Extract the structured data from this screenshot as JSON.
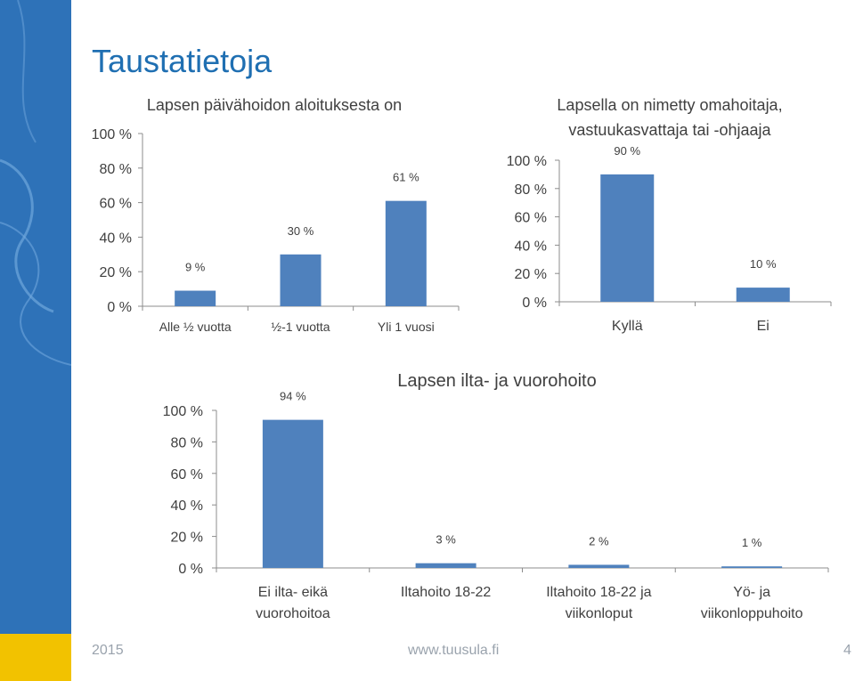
{
  "slide": {
    "title": "Taustatietoja",
    "footer_year": "2015",
    "footer_url": "www.tuusula.fi",
    "page_number": "4"
  },
  "colors": {
    "bar": "#4f81bd",
    "sidebar": "#2e72b8",
    "sidebar_accent": "#f2c200",
    "title": "#1f6fb2"
  },
  "chart_data": [
    {
      "type": "bar",
      "title": "Lapsen päivähoidon aloituksesta on",
      "categories": [
        "Alle ½ vuotta",
        "½-1 vuotta",
        "Yli 1 vuosi"
      ],
      "values": [
        9,
        30,
        61
      ],
      "data_labels": [
        "9 %",
        "30 %",
        "61 %"
      ],
      "ylim": [
        0,
        100
      ],
      "yticks": [
        "0 %",
        "20 %",
        "40 %",
        "60 %",
        "80 %",
        "100 %"
      ],
      "xlabel": "",
      "ylabel": ""
    },
    {
      "type": "bar",
      "title_lines": [
        "Lapsella on nimetty omahoitaja,",
        "vastuukasvattaja tai -ohjaaja"
      ],
      "categories": [
        "Kyllä",
        "Ei"
      ],
      "values": [
        90,
        10
      ],
      "data_labels": [
        "90 %",
        "10 %"
      ],
      "ylim": [
        0,
        100
      ],
      "yticks": [
        "0 %",
        "20 %",
        "40 %",
        "60 %",
        "80 %",
        "100 %"
      ],
      "xlabel": "",
      "ylabel": ""
    },
    {
      "type": "bar",
      "title": "Lapsen ilta- ja vuorohoito",
      "categories": [
        [
          "Ei ilta- eikä",
          "vuorohoitoa"
        ],
        [
          "Iltahoito 18-22"
        ],
        [
          "Iltahoito 18-22 ja",
          "viikonloput"
        ],
        [
          "Yö- ja",
          "viikonloppuhoito"
        ]
      ],
      "values": [
        94,
        3,
        2,
        1
      ],
      "data_labels": [
        "94 %",
        "3 %",
        "2 %",
        "1 %"
      ],
      "ylim": [
        0,
        100
      ],
      "yticks": [
        "0 %",
        "20 %",
        "40 %",
        "60 %",
        "80 %",
        "100 %"
      ],
      "xlabel": "",
      "ylabel": ""
    }
  ]
}
